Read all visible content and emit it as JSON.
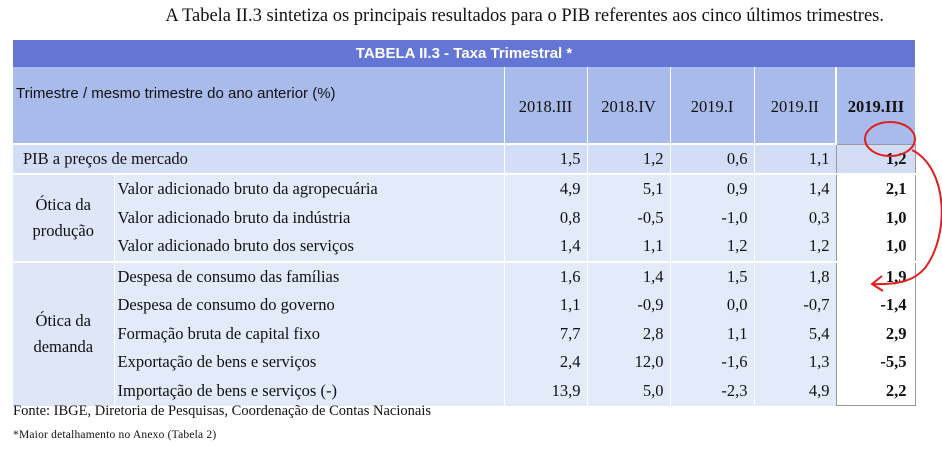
{
  "intro_text": "A Tabela II.3 sintetiza os principais resultados para o PIB referentes aos cinco últimos trimestres.",
  "table": {
    "title": "TABELA II.3 - Taxa Trimestral *",
    "header_label": "Trimestre / mesmo trimestre do ano anterior (%)",
    "columns": [
      "2018.III",
      "2018.IV",
      "2019.I",
      "2019.II",
      "2019.III"
    ],
    "pib": {
      "label": "PIB a preços de mercado",
      "values": [
        "1,5",
        "1,2",
        "0,6",
        "1,1",
        "1,2"
      ]
    },
    "groups": [
      {
        "label_line1": "Ótica da",
        "label_line2": "produção",
        "rows": [
          {
            "label": "Valor adicionado bruto da agropecuária",
            "values": [
              "4,9",
              "5,1",
              "0,9",
              "1,4",
              "2,1"
            ]
          },
          {
            "label": "Valor adicionado bruto da indústria",
            "values": [
              "0,8",
              "-0,5",
              "-1,0",
              "0,3",
              "1,0"
            ]
          },
          {
            "label": "Valor adicionado bruto dos serviços",
            "values": [
              "1,4",
              "1,1",
              "1,2",
              "1,2",
              "1,0"
            ]
          }
        ]
      },
      {
        "label_line1": "Ótica da",
        "label_line2": "demanda",
        "rows": [
          {
            "label": "Despesa de consumo das famílias",
            "values": [
              "1,6",
              "1,4",
              "1,5",
              "1,8",
              "1,9"
            ]
          },
          {
            "label": "Despesa de consumo do governo",
            "values": [
              "1,1",
              "-0,9",
              "0,0",
              "-0,7",
              "-1,4"
            ]
          },
          {
            "label": "Formação bruta de capital fixo",
            "values": [
              "7,7",
              "2,8",
              "1,1",
              "5,4",
              "2,9"
            ]
          },
          {
            "label": "Exportação de bens e serviços",
            "values": [
              "2,4",
              "12,0",
              "-1,6",
              "1,3",
              "-5,5"
            ]
          },
          {
            "label": "Importação de bens e serviços  (-)",
            "values": [
              "13,9",
              "5,0",
              "-2,3",
              "4,9",
              "2,2"
            ]
          }
        ]
      }
    ]
  },
  "source": "Fonte: IBGE, Diretoria de Pesquisas, Coordenação de Contas Nacionais",
  "note": "*Maior detalhamento no Anexo (Tabela 2)",
  "colors": {
    "title_bg": "#6376d6",
    "header_bg": "#a9bbeb",
    "pib_bg": "#d3ddf5",
    "row_bg": "#e3eaf9",
    "annotation": "#e02020"
  }
}
